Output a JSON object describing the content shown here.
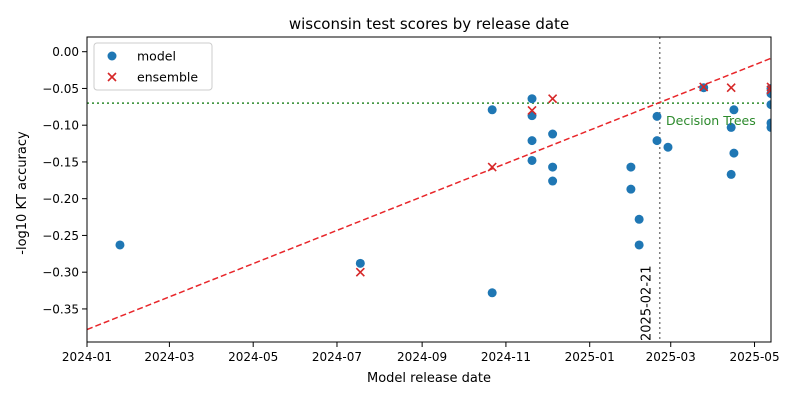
{
  "chart_data": {
    "type": "scatter",
    "title": "wisconsin test scores by release date",
    "xlabel": "Model release date",
    "ylabel": "-log10 KT accuracy",
    "xlim": [
      "2024-01-01",
      "2025-05-13"
    ],
    "ylim": [
      -0.395,
      0.02
    ],
    "grid": false,
    "legend_position": "upper-left",
    "x_ticks": [
      "2024-01",
      "2024-03",
      "2024-05",
      "2024-07",
      "2024-09",
      "2024-11",
      "2025-01",
      "2025-03",
      "2025-05"
    ],
    "y_ticks": [
      0.0,
      -0.05,
      -0.1,
      -0.15,
      -0.2,
      -0.25,
      -0.3,
      -0.35
    ],
    "y_tick_labels": [
      "0.00",
      "−0.05",
      "−0.10",
      "−0.15",
      "−0.20",
      "−0.25",
      "−0.30",
      "−0.35"
    ],
    "series": [
      {
        "name": "model",
        "marker": "circle",
        "color": "#1f77b4",
        "points": [
          {
            "x": "2024-01-25",
            "y": -0.263
          },
          {
            "x": "2024-07-18",
            "y": -0.288
          },
          {
            "x": "2024-10-22",
            "y": -0.079
          },
          {
            "x": "2024-10-22",
            "y": -0.328
          },
          {
            "x": "2024-11-20",
            "y": -0.064
          },
          {
            "x": "2024-11-20",
            "y": -0.087
          },
          {
            "x": "2024-11-20",
            "y": -0.121
          },
          {
            "x": "2024-11-20",
            "y": -0.148
          },
          {
            "x": "2024-12-05",
            "y": -0.112
          },
          {
            "x": "2024-12-05",
            "y": -0.157
          },
          {
            "x": "2024-12-05",
            "y": -0.176
          },
          {
            "x": "2025-01-31",
            "y": -0.157
          },
          {
            "x": "2025-01-31",
            "y": -0.187
          },
          {
            "x": "2025-02-06",
            "y": -0.228
          },
          {
            "x": "2025-02-06",
            "y": -0.263
          },
          {
            "x": "2025-02-19",
            "y": -0.088
          },
          {
            "x": "2025-02-19",
            "y": -0.121
          },
          {
            "x": "2025-02-27",
            "y": -0.13
          },
          {
            "x": "2025-03-25",
            "y": -0.049
          },
          {
            "x": "2025-04-14",
            "y": -0.103
          },
          {
            "x": "2025-04-14",
            "y": -0.167
          },
          {
            "x": "2025-04-16",
            "y": -0.079
          },
          {
            "x": "2025-04-16",
            "y": -0.138
          },
          {
            "x": "2025-05-13",
            "y": -0.05
          },
          {
            "x": "2025-05-13",
            "y": -0.057
          },
          {
            "x": "2025-05-13",
            "y": -0.072
          },
          {
            "x": "2025-05-13",
            "y": -0.097
          },
          {
            "x": "2025-05-13",
            "y": -0.103
          }
        ]
      },
      {
        "name": "ensemble",
        "marker": "x",
        "color": "#d62728",
        "points": [
          {
            "x": "2024-07-18",
            "y": -0.3
          },
          {
            "x": "2024-10-22",
            "y": -0.157
          },
          {
            "x": "2024-11-20",
            "y": -0.08
          },
          {
            "x": "2024-12-05",
            "y": -0.064
          },
          {
            "x": "2025-03-25",
            "y": -0.048
          },
          {
            "x": "2025-04-14",
            "y": -0.049
          },
          {
            "x": "2025-05-13",
            "y": -0.048
          },
          {
            "x": "2025-05-13",
            "y": -0.052
          }
        ]
      }
    ],
    "trend_line": {
      "style": "dashed",
      "color": "#e8262a",
      "start": {
        "x": "2024-01-01",
        "y": -0.378
      },
      "end": {
        "x": "2025-05-13",
        "y": -0.009
      }
    },
    "reference_line": {
      "style": "dotted",
      "color": "#2c8a2c",
      "y": -0.07,
      "label": "Decision Trees"
    },
    "vertical_marker": {
      "style": "dotted",
      "color": "#7f7f7f",
      "x": "2025-02-21",
      "label": "2025-02-21"
    }
  }
}
